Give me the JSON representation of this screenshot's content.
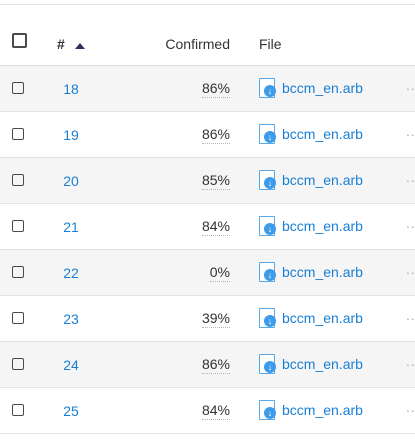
{
  "header": {
    "num_label": "#",
    "confirmed_label": "Confirmed",
    "file_label": "File"
  },
  "rows": [
    {
      "num": "18",
      "confirmed": "86%",
      "file": "bccm_en.arb"
    },
    {
      "num": "19",
      "confirmed": "86%",
      "file": "bccm_en.arb"
    },
    {
      "num": "20",
      "confirmed": "85%",
      "file": "bccm_en.arb"
    },
    {
      "num": "21",
      "confirmed": "84%",
      "file": "bccm_en.arb"
    },
    {
      "num": "22",
      "confirmed": "0%",
      "file": "bccm_en.arb"
    },
    {
      "num": "23",
      "confirmed": "39%",
      "file": "bccm_en.arb"
    },
    {
      "num": "24",
      "confirmed": "86%",
      "file": "bccm_en.arb"
    },
    {
      "num": "25",
      "confirmed": "84%",
      "file": "bccm_en.arb"
    }
  ],
  "icons": {
    "sort": "sort-ascending-icon",
    "file": "file-download-icon",
    "more": "more-dots-icon"
  },
  "colors": {
    "link": "#1a7fd4",
    "stripe": "#f5f5f5",
    "file_icon": "#3d9be9"
  }
}
